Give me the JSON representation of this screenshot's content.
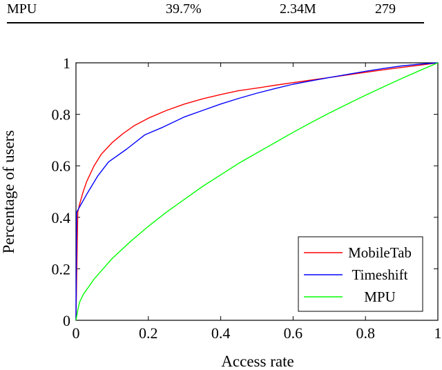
{
  "table": {
    "row": [
      "MPU",
      "39.7%",
      "2.34M",
      "279"
    ]
  },
  "chart_data": {
    "type": "line",
    "xlabel": "Access rate",
    "ylabel": "Percentage of users",
    "xlim": [
      0,
      1
    ],
    "ylim": [
      0,
      1
    ],
    "x_ticks": [
      "0",
      "0.2",
      "0.4",
      "0.6",
      "0.8",
      "1"
    ],
    "y_ticks": [
      "0",
      "0.2",
      "0.4",
      "0.6",
      "0.8",
      "1"
    ],
    "grid": false,
    "legend_position": "bottom-right",
    "series": [
      {
        "name": "MobileTab",
        "color": "#ff0000",
        "x": [
          0,
          0.005,
          0.01,
          0.02,
          0.03,
          0.05,
          0.07,
          0.1,
          0.13,
          0.16,
          0.2,
          0.25,
          0.3,
          0.35,
          0.4,
          0.45,
          0.5,
          0.55,
          0.6,
          0.65,
          0.7,
          0.75,
          0.8,
          0.85,
          0.9,
          0.95,
          1.0
        ],
        "y": [
          0,
          0.42,
          0.45,
          0.5,
          0.54,
          0.6,
          0.645,
          0.69,
          0.725,
          0.755,
          0.785,
          0.815,
          0.84,
          0.86,
          0.877,
          0.892,
          0.902,
          0.913,
          0.923,
          0.933,
          0.943,
          0.953,
          0.963,
          0.973,
          0.982,
          0.991,
          1.0
        ]
      },
      {
        "name": "Timeshift",
        "color": "#0000ff",
        "x": [
          0,
          0.002,
          0.01,
          0.03,
          0.06,
          0.09,
          0.14,
          0.19,
          0.24,
          0.3,
          0.35,
          0.4,
          0.45,
          0.5,
          0.55,
          0.6,
          0.65,
          0.7,
          0.75,
          0.8,
          0.85,
          0.9,
          0.95,
          1.0
        ],
        "y": [
          0,
          0.42,
          0.44,
          0.49,
          0.56,
          0.615,
          0.665,
          0.72,
          0.75,
          0.79,
          0.815,
          0.84,
          0.862,
          0.882,
          0.9,
          0.917,
          0.93,
          0.943,
          0.955,
          0.967,
          0.978,
          0.988,
          0.995,
          1.0
        ]
      },
      {
        "name": "MPU",
        "color": "#00ff00",
        "x": [
          0,
          0.005,
          0.01,
          0.02,
          0.05,
          0.1,
          0.15,
          0.2,
          0.25,
          0.3,
          0.35,
          0.4,
          0.45,
          0.5,
          0.55,
          0.6,
          0.65,
          0.7,
          0.75,
          0.8,
          0.85,
          0.9,
          0.95,
          1.0
        ],
        "y": [
          0,
          0.04,
          0.07,
          0.1,
          0.16,
          0.24,
          0.305,
          0.365,
          0.42,
          0.47,
          0.52,
          0.565,
          0.61,
          0.65,
          0.69,
          0.73,
          0.768,
          0.805,
          0.84,
          0.874,
          0.907,
          0.939,
          0.97,
          1.0
        ]
      }
    ]
  }
}
